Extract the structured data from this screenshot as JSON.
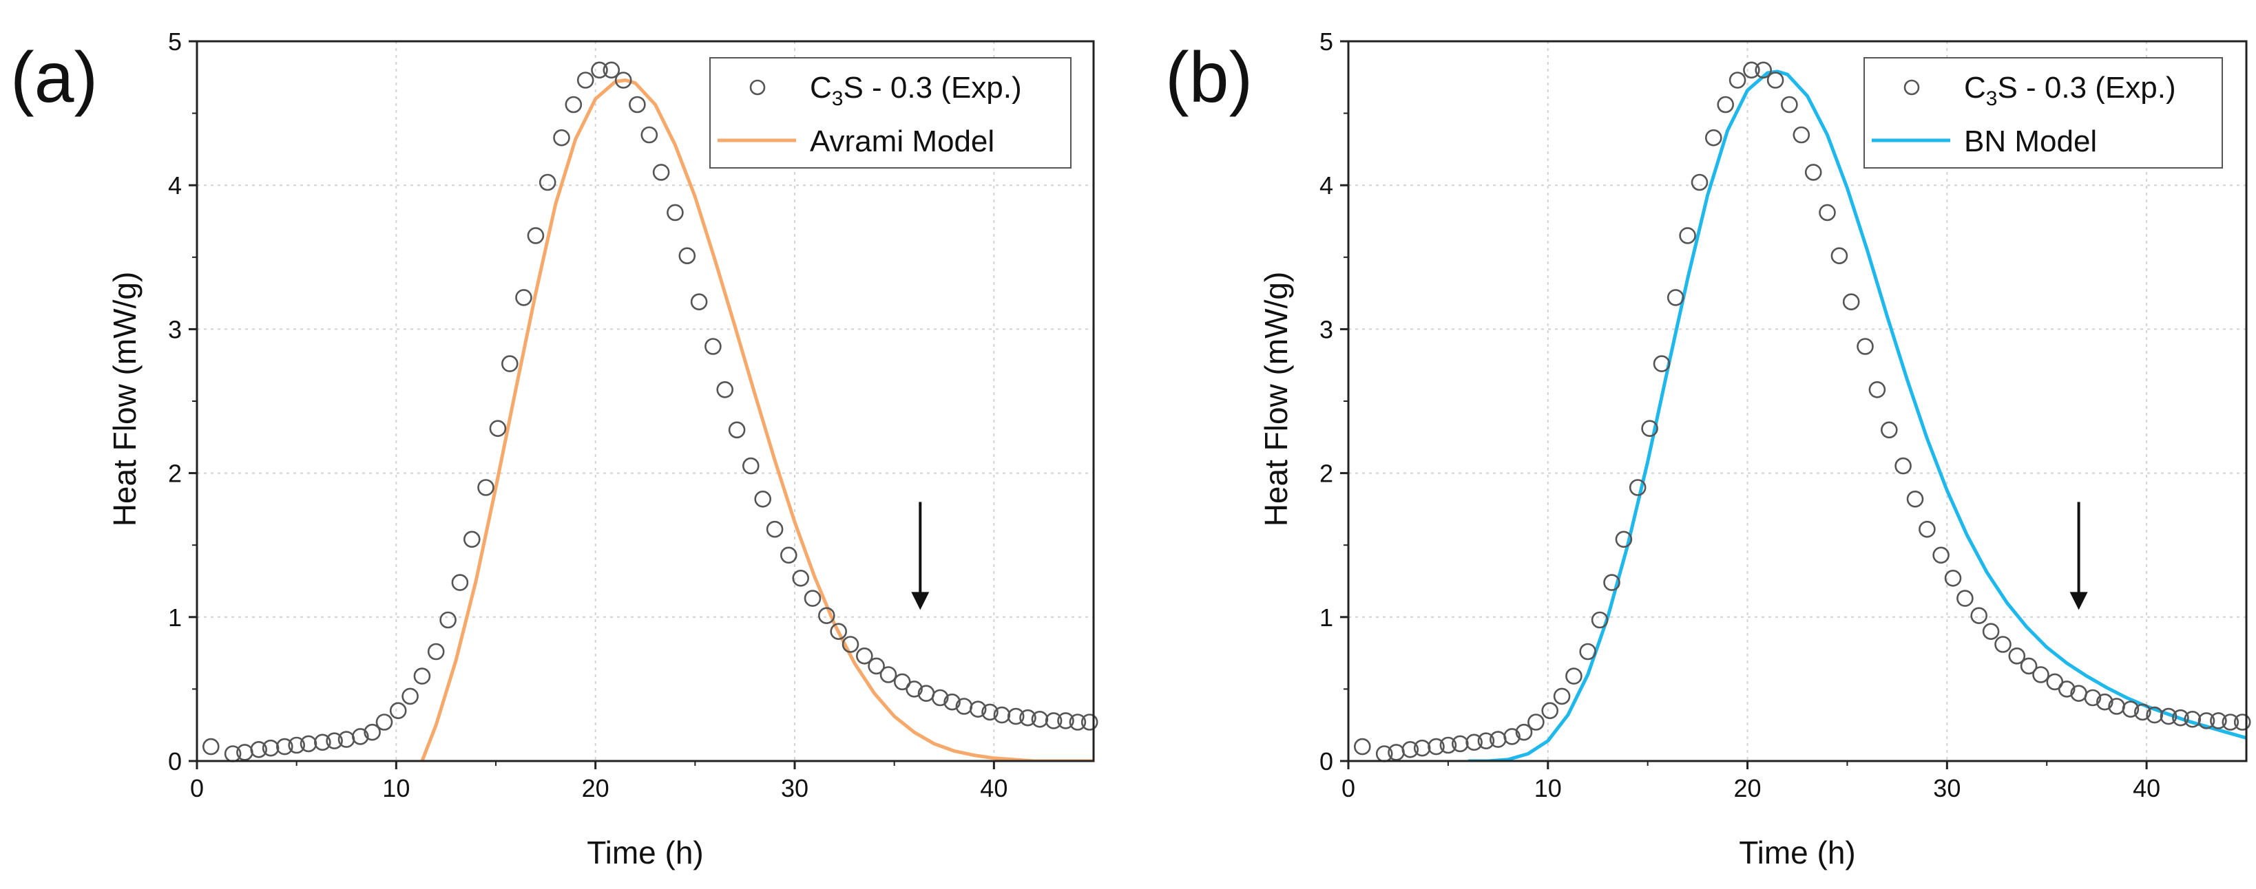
{
  "figure": {
    "panels": [
      {
        "label": "(a)",
        "legend": {
          "exp_main": "C",
          "exp_sub": "3",
          "exp_rest": "S - 0.3 (Exp.)",
          "model": "Avrami Model"
        }
      },
      {
        "label": "(b)",
        "legend": {
          "exp_main": "C",
          "exp_sub": "3",
          "exp_rest": "S - 0.3 (Exp.)",
          "model": "BN Model"
        }
      }
    ]
  },
  "chart_data": [
    {
      "type": "scatter+line",
      "panel": "(a)",
      "xlabel": "Time (h)",
      "ylabel": "Heat Flow (mW/g)",
      "xlim": [
        0,
        45
      ],
      "ylim": [
        0,
        5
      ],
      "xticks": [
        0,
        10,
        20,
        30,
        40
      ],
      "yticks": [
        0,
        1,
        2,
        3,
        4,
        5
      ],
      "grid": true,
      "legend_position": "top-right",
      "model_color": "#f6a96a",
      "annotation": {
        "type": "arrow-down",
        "x": 36.3,
        "y_from": 1.8,
        "y_to": 1.05
      },
      "series": [
        {
          "name": "C3S - 0.3 (Exp.)",
          "marker": "open-circle",
          "x": [
            0.7,
            1.8,
            2.4,
            3.1,
            3.7,
            4.4,
            5.0,
            5.6,
            6.3,
            6.9,
            7.5,
            8.2,
            8.8,
            9.4,
            10.1,
            10.7,
            11.3,
            12.0,
            12.6,
            13.2,
            13.8,
            14.5,
            15.1,
            15.7,
            16.4,
            17.0,
            17.6,
            18.3,
            18.9,
            19.5,
            20.2,
            20.8,
            21.4,
            22.1,
            22.7,
            23.3,
            24.0,
            24.6,
            25.2,
            25.9,
            26.5,
            27.1,
            27.8,
            28.4,
            29.0,
            29.7,
            30.3,
            30.9,
            31.6,
            32.2,
            32.8,
            33.5,
            34.1,
            34.7,
            35.4,
            36.0,
            36.6,
            37.3,
            37.9,
            38.5,
            39.2,
            39.8,
            40.4,
            41.1,
            41.7,
            42.3,
            43.0,
            43.6,
            44.2,
            44.8
          ],
          "y": [
            0.1,
            0.05,
            0.06,
            0.08,
            0.09,
            0.1,
            0.11,
            0.12,
            0.13,
            0.14,
            0.15,
            0.17,
            0.2,
            0.27,
            0.35,
            0.45,
            0.59,
            0.76,
            0.98,
            1.24,
            1.54,
            1.9,
            2.31,
            2.76,
            3.22,
            3.65,
            4.02,
            4.33,
            4.56,
            4.73,
            4.8,
            4.8,
            4.73,
            4.56,
            4.35,
            4.09,
            3.81,
            3.51,
            3.19,
            2.88,
            2.58,
            2.3,
            2.05,
            1.82,
            1.61,
            1.43,
            1.27,
            1.13,
            1.01,
            0.9,
            0.81,
            0.73,
            0.66,
            0.6,
            0.55,
            0.5,
            0.47,
            0.44,
            0.41,
            0.38,
            0.36,
            0.34,
            0.32,
            0.31,
            0.3,
            0.29,
            0.28,
            0.28,
            0.27,
            0.27
          ]
        },
        {
          "name": "Avrami Model",
          "marker": "line",
          "x": [
            11.3,
            12.0,
            13.0,
            14.0,
            15.0,
            16.0,
            17.0,
            18.0,
            19.0,
            20.0,
            21.0,
            21.5,
            22.0,
            23.0,
            24.0,
            25.0,
            26.0,
            27.0,
            28.0,
            29.0,
            30.0,
            31.0,
            32.0,
            33.0,
            34.0,
            35.0,
            36.0,
            37.0,
            38.0,
            39.0,
            40.0,
            41.0,
            42.0,
            43.0,
            44.0,
            45.0
          ],
          "y": [
            0.0,
            0.25,
            0.7,
            1.25,
            1.9,
            2.58,
            3.25,
            3.87,
            4.32,
            4.6,
            4.72,
            4.73,
            4.71,
            4.56,
            4.28,
            3.92,
            3.48,
            3.02,
            2.55,
            2.09,
            1.66,
            1.28,
            0.95,
            0.68,
            0.47,
            0.31,
            0.2,
            0.12,
            0.07,
            0.04,
            0.02,
            0.01,
            0.0,
            0.0,
            0.0,
            0.0
          ]
        }
      ]
    },
    {
      "type": "scatter+line",
      "panel": "(b)",
      "xlabel": "Time (h)",
      "ylabel": "Heat Flow (mW/g)",
      "xlim": [
        0,
        45
      ],
      "ylim": [
        0,
        5
      ],
      "xticks": [
        0,
        10,
        20,
        30,
        40
      ],
      "yticks": [
        0,
        1,
        2,
        3,
        4,
        5
      ],
      "grid": true,
      "legend_position": "top-right",
      "model_color": "#1fb8ec",
      "annotation": {
        "type": "arrow-down",
        "x": 36.6,
        "y_from": 1.8,
        "y_to": 1.05
      },
      "series": [
        {
          "name": "C3S - 0.3 (Exp.)",
          "marker": "open-circle",
          "x": [
            0.7,
            1.8,
            2.4,
            3.1,
            3.7,
            4.4,
            5.0,
            5.6,
            6.3,
            6.9,
            7.5,
            8.2,
            8.8,
            9.4,
            10.1,
            10.7,
            11.3,
            12.0,
            12.6,
            13.2,
            13.8,
            14.5,
            15.1,
            15.7,
            16.4,
            17.0,
            17.6,
            18.3,
            18.9,
            19.5,
            20.2,
            20.8,
            21.4,
            22.1,
            22.7,
            23.3,
            24.0,
            24.6,
            25.2,
            25.9,
            26.5,
            27.1,
            27.8,
            28.4,
            29.0,
            29.7,
            30.3,
            30.9,
            31.6,
            32.2,
            32.8,
            33.5,
            34.1,
            34.7,
            35.4,
            36.0,
            36.6,
            37.3,
            37.9,
            38.5,
            39.2,
            39.8,
            40.4,
            41.1,
            41.7,
            42.3,
            43.0,
            43.6,
            44.2,
            44.8
          ],
          "y": [
            0.1,
            0.05,
            0.06,
            0.08,
            0.09,
            0.1,
            0.11,
            0.12,
            0.13,
            0.14,
            0.15,
            0.17,
            0.2,
            0.27,
            0.35,
            0.45,
            0.59,
            0.76,
            0.98,
            1.24,
            1.54,
            1.9,
            2.31,
            2.76,
            3.22,
            3.65,
            4.02,
            4.33,
            4.56,
            4.73,
            4.8,
            4.8,
            4.73,
            4.56,
            4.35,
            4.09,
            3.81,
            3.51,
            3.19,
            2.88,
            2.58,
            2.3,
            2.05,
            1.82,
            1.61,
            1.43,
            1.27,
            1.13,
            1.01,
            0.9,
            0.81,
            0.73,
            0.66,
            0.6,
            0.55,
            0.5,
            0.47,
            0.44,
            0.41,
            0.38,
            0.36,
            0.34,
            0.32,
            0.31,
            0.3,
            0.29,
            0.28,
            0.28,
            0.27,
            0.27
          ]
        },
        {
          "name": "BN Model",
          "marker": "line",
          "x": [
            6.0,
            7.0,
            8.0,
            9.0,
            10.0,
            11.0,
            12.0,
            13.0,
            14.0,
            15.0,
            16.0,
            17.0,
            18.0,
            19.0,
            20.0,
            21.0,
            21.5,
            22.0,
            23.0,
            24.0,
            25.0,
            26.0,
            27.0,
            28.0,
            29.0,
            30.0,
            31.0,
            32.0,
            33.0,
            34.0,
            35.0,
            36.0,
            37.0,
            38.0,
            39.0,
            40.0,
            41.0,
            42.0,
            43.0,
            44.0,
            45.0
          ],
          "y": [
            0.0,
            0.0,
            0.01,
            0.05,
            0.14,
            0.32,
            0.6,
            1.0,
            1.5,
            2.08,
            2.72,
            3.35,
            3.93,
            4.38,
            4.66,
            4.78,
            4.79,
            4.77,
            4.62,
            4.35,
            3.98,
            3.55,
            3.09,
            2.65,
            2.24,
            1.88,
            1.57,
            1.31,
            1.1,
            0.93,
            0.79,
            0.68,
            0.59,
            0.51,
            0.44,
            0.38,
            0.33,
            0.28,
            0.24,
            0.2,
            0.16
          ]
        }
      ]
    }
  ]
}
